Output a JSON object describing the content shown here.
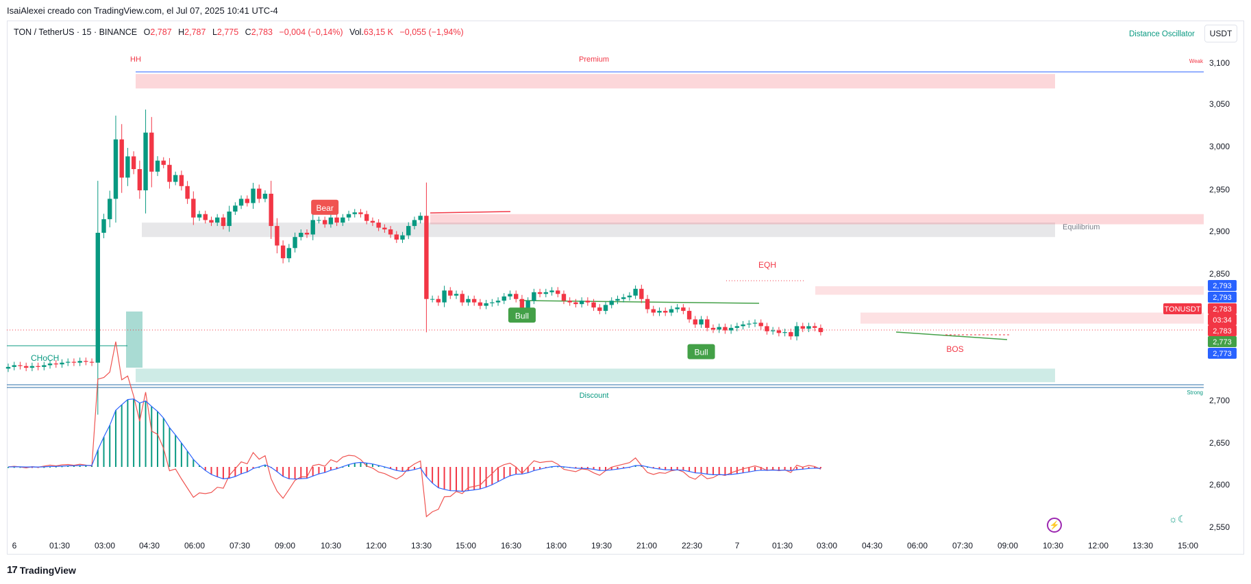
{
  "caption": "IsaiAlexei creado con TradingView.com, el Jul 07, 2025 10:41 UTC-4",
  "legend": {
    "symbol": "TON / TetherUS · 15 · BINANCE",
    "o_label": "O",
    "o_value": "2,787",
    "h_label": "H",
    "h_value": "2,787",
    "l_label": "L",
    "l_value": "2,775",
    "c_label": "C",
    "c_value": "2,783",
    "change": "−0,004 (−0,14%)",
    "vol_label": "Vol.",
    "vol_value": "63,15 K",
    "vol_change": "−0,055 (−1,94%)"
  },
  "indicator_name": "Distance Oscillator",
  "currency_button": "USDT",
  "footer_brand": "TradingView",
  "icons": {
    "brand_logo": "tradingview-logo-icon",
    "bolt": "lightning-icon",
    "weather": "sun-moon-icon"
  },
  "colors": {
    "up": "#089981",
    "down": "#f23645",
    "bull_label": "#43a047",
    "blue": "#2962ff"
  },
  "chart_data": {
    "type": "candlestick",
    "x_ticks": [
      "6",
      "01:30",
      "03:00",
      "04:30",
      "06:00",
      "07:30",
      "09:00",
      "10:30",
      "12:00",
      "13:30",
      "15:00",
      "16:30",
      "18:00",
      "19:30",
      "21:00",
      "22:30",
      "7",
      "01:30",
      "03:00",
      "04:30",
      "06:00",
      "07:30",
      "09:00",
      "10:30",
      "12:00",
      "13:30",
      "15:00"
    ],
    "y_ticks": [
      "3,100",
      "3,050",
      "3,000",
      "2,950",
      "2,900",
      "2,850",
      "2,700",
      "2,650",
      "2,600",
      "2,550"
    ],
    "price_range": [
      2.72,
      3.115
    ],
    "zone_labels": {
      "hh": "HH",
      "premium": "Premium",
      "weak": "Weak",
      "equilibrium": "Equilibrium",
      "eqh": "EQH",
      "choch": "CHoCH",
      "bos": "BOS",
      "discount": "Discount",
      "strong": "Strong"
    },
    "zones": {
      "premium": [
        3.07,
        3.087
      ],
      "equilibrium": [
        2.895,
        2.912
      ],
      "bear_ob": [
        2.91,
        2.922
      ],
      "ob2": [
        2.827,
        2.837
      ],
      "ob3": [
        2.793,
        2.806
      ],
      "discount": [
        2.724,
        2.74
      ]
    },
    "signals": [
      {
        "text": "Bear",
        "candle": 53,
        "price": 2.93
      },
      {
        "text": "Bull",
        "candle": 86,
        "price": 2.803
      },
      {
        "text": "Bull",
        "candle": 116,
        "price": 2.76
      }
    ],
    "price_tags": [
      {
        "value": "2,793",
        "color": "#2962ff"
      },
      {
        "value": "2,793",
        "color": "#2962ff"
      },
      {
        "value": "TONUSDT",
        "color": "#f23645"
      },
      {
        "value": "2,783",
        "color": "#f23645"
      },
      {
        "value": "03:34",
        "color": "#f23645"
      },
      {
        "value": "2,783",
        "color": "#f23645"
      },
      {
        "value": "2,773",
        "color": "#43a047"
      },
      {
        "value": "2,773",
        "color": "#2962ff"
      }
    ],
    "closes": [
      2.742,
      2.744,
      2.743,
      2.741,
      2.743,
      2.742,
      2.744,
      2.746,
      2.745,
      2.747,
      2.748,
      2.747,
      2.749,
      2.748,
      2.747,
      2.9,
      2.916,
      2.94,
      3.01,
      2.965,
      2.99,
      2.975,
      2.95,
      3.018,
      2.972,
      2.985,
      2.98,
      2.96,
      2.968,
      2.955,
      2.94,
      2.918,
      2.922,
      2.915,
      2.912,
      2.918,
      2.908,
      2.925,
      2.932,
      2.94,
      2.935,
      2.952,
      2.94,
      2.946,
      2.908,
      2.885,
      2.87,
      2.882,
      2.895,
      2.9,
      2.898,
      2.915,
      2.915,
      2.91,
      2.918,
      2.912,
      2.918,
      2.922,
      2.924,
      2.922,
      2.914,
      2.912,
      2.906,
      2.904,
      2.898,
      2.892,
      2.897,
      2.908,
      2.915,
      2.92,
      2.822,
      2.822,
      2.818,
      2.832,
      2.826,
      2.828,
      2.818,
      2.822,
      2.818,
      2.814,
      2.817,
      2.818,
      2.82,
      2.825,
      2.828,
      2.822,
      2.81,
      2.82,
      2.83,
      2.828,
      2.83,
      2.832,
      2.828,
      2.82,
      2.818,
      2.816,
      2.82,
      2.818,
      2.812,
      2.808,
      2.815,
      2.82,
      2.822,
      2.824,
      2.826,
      2.834,
      2.822,
      2.81,
      2.806,
      2.808,
      2.806,
      2.81,
      2.812,
      2.808,
      2.798,
      2.792,
      2.798,
      2.788,
      2.786,
      2.789,
      2.785,
      2.788,
      2.79,
      2.792,
      2.793,
      2.794,
      2.79,
      2.784,
      2.785,
      2.782,
      2.783,
      2.778,
      2.79,
      2.787,
      2.79,
      2.788,
      2.783
    ]
  }
}
